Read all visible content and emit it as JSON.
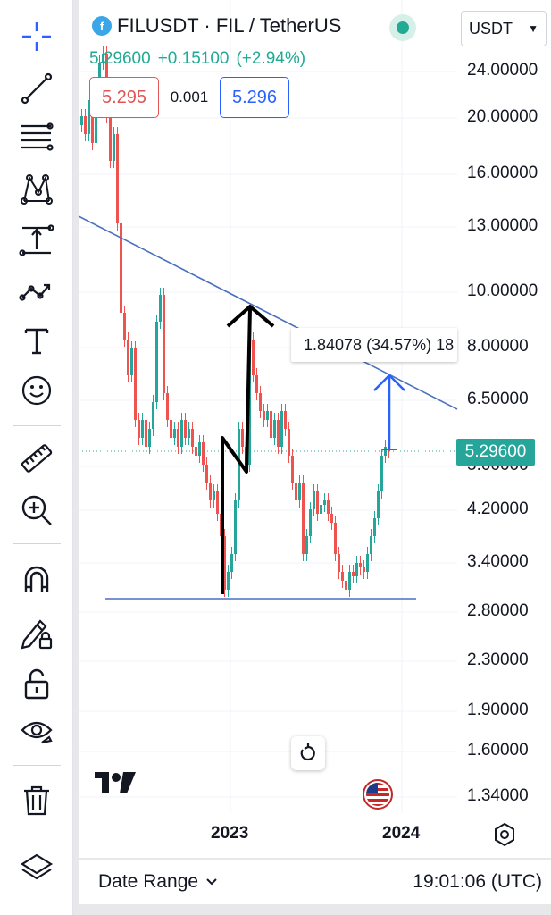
{
  "header": {
    "symbol_title": "FILUSDT · FIL / TetherUS",
    "logo_letter": "f",
    "last_price": "5.29600",
    "change": "+0.15100",
    "change_percent": "(+2.94%)",
    "currency": "USDT",
    "bid": "5.295",
    "spread": "0.001",
    "ask": "5.296"
  },
  "price_axis": {
    "labels": [
      "24.00000",
      "20.00000",
      "16.00000",
      "13.00000",
      "10.00000",
      "8.00000",
      "6.50000",
      "5.00000",
      "4.20000",
      "3.40000",
      "2.80000",
      "2.30000",
      "1.90000",
      "1.60000",
      "1.34000"
    ],
    "current_price_tag": "5.29600"
  },
  "time_axis": {
    "labels": [
      "2023",
      "2024"
    ]
  },
  "measure": {
    "text": "1.84078 (34.57%) 18"
  },
  "bottom_bar": {
    "date_range_label": "Date Range",
    "clock": "19:01:06 (UTC)"
  },
  "colors": {
    "up": "#26a69a",
    "down": "#ef5350",
    "trendline": "#4a6fbf",
    "accent_blue": "#2962ff"
  },
  "toolbar": {
    "icons": [
      "crosshair-icon",
      "trend-line-icon",
      "fib-retracement-icon",
      "pattern-icon",
      "prediction-icon",
      "path-icon",
      "text-icon",
      "emoji-icon",
      "ruler-icon",
      "zoom-in-icon",
      "magnet-icon",
      "lock-drawing-icon",
      "unlock-icon",
      "eye-icon",
      "trash-icon",
      "layers-icon"
    ]
  }
}
